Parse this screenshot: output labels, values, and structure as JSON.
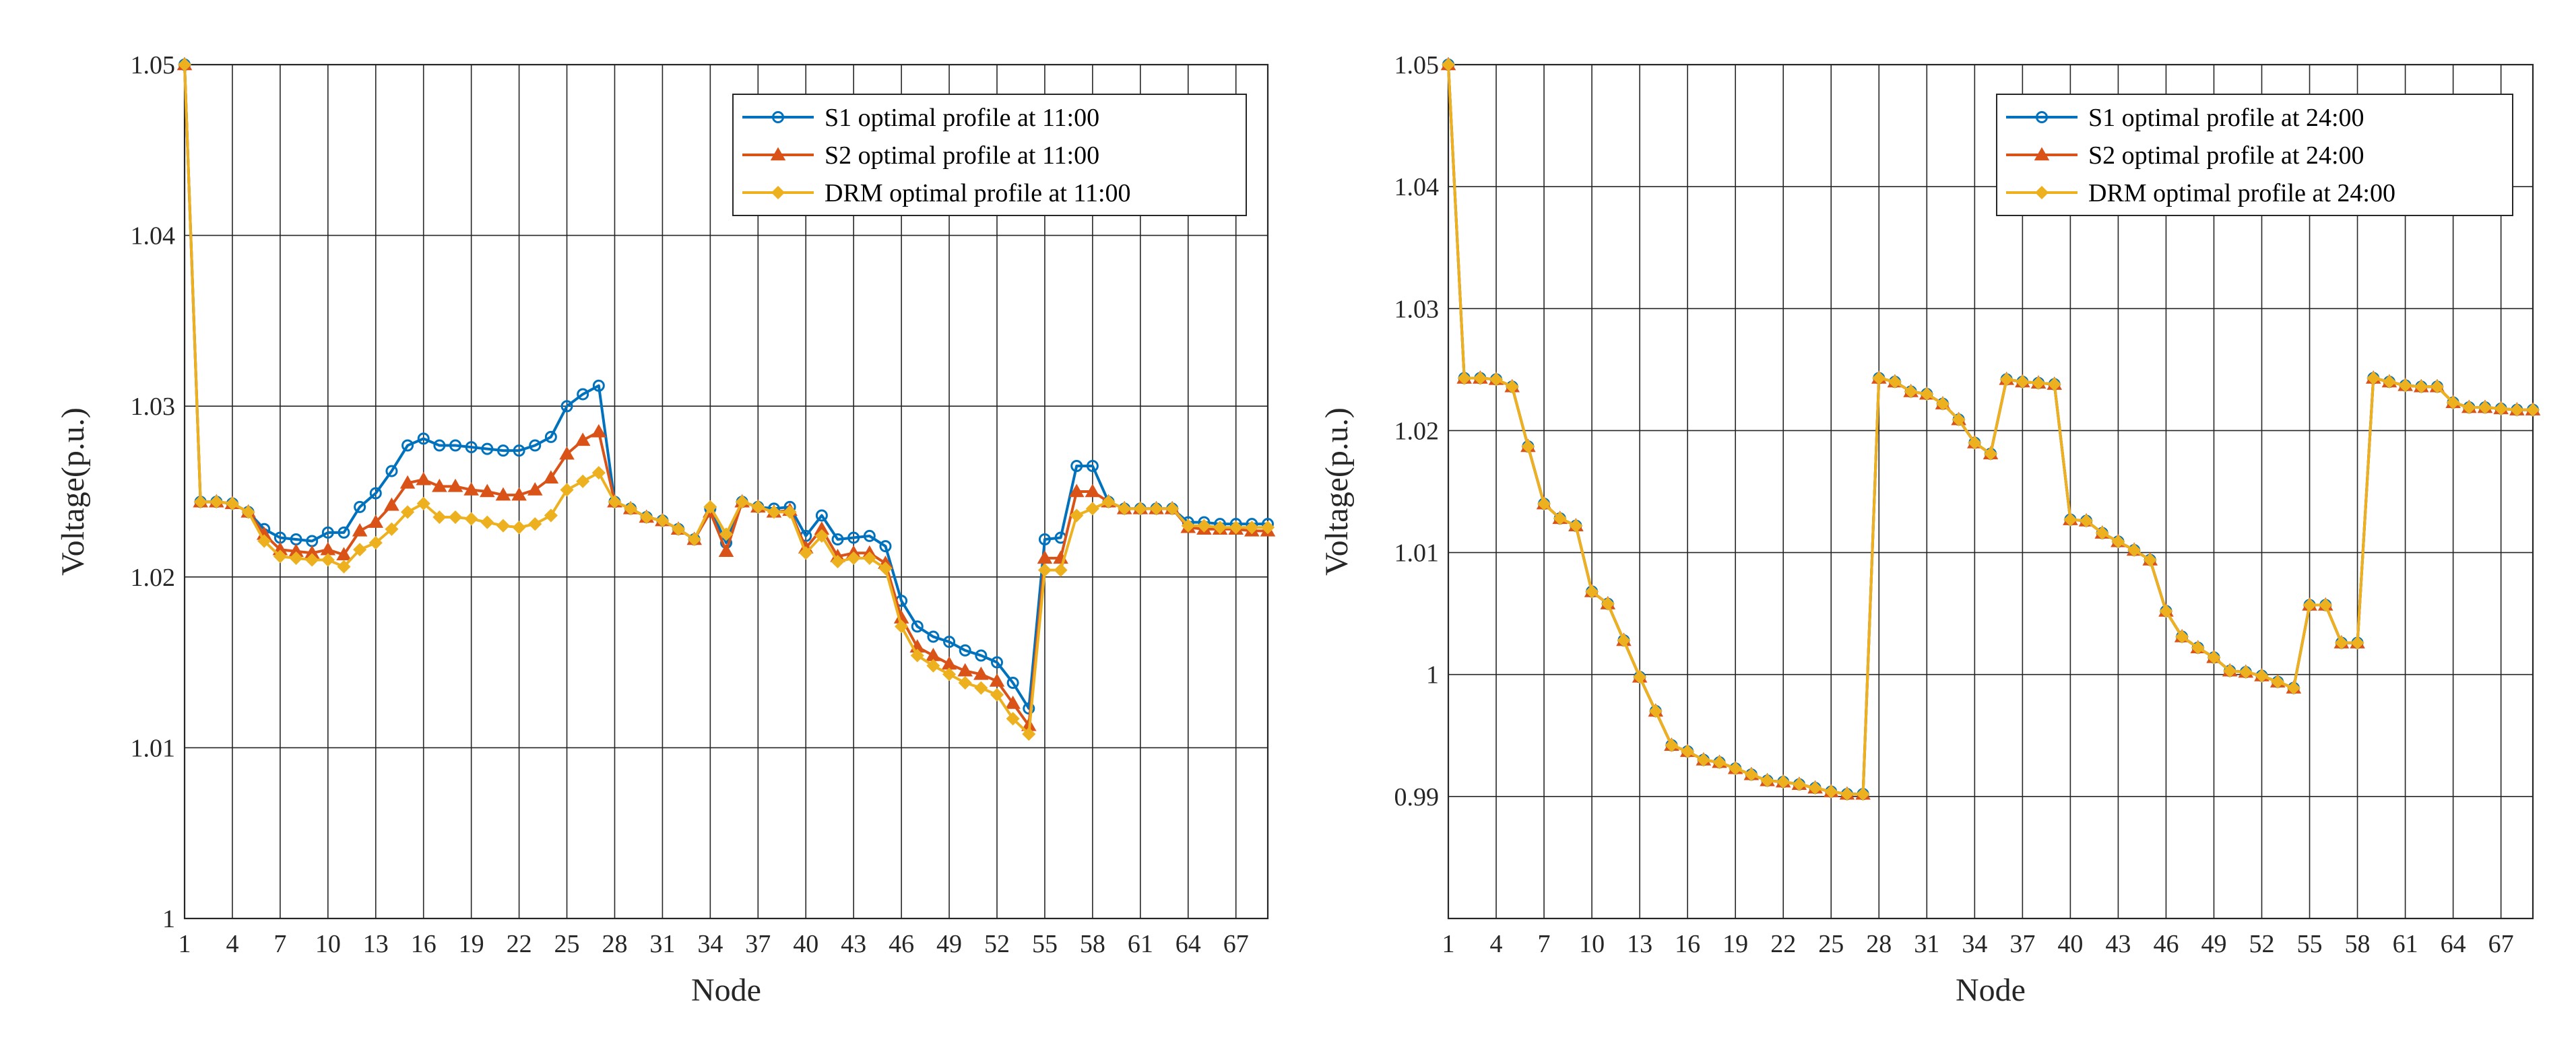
{
  "colors": {
    "S1": "#0072BD",
    "S2": "#D95319",
    "DRM": "#EDB120",
    "grid": "#262626",
    "axis": "#262626"
  },
  "chart_data": [
    {
      "type": "line",
      "title": "",
      "xlabel": "Node",
      "ylabel": "Voltage(p.u.)",
      "xlim": [
        1,
        69
      ],
      "ylim": [
        1.0,
        1.05
      ],
      "xticks": [
        1,
        4,
        7,
        10,
        13,
        16,
        19,
        22,
        25,
        28,
        31,
        34,
        37,
        40,
        43,
        46,
        49,
        52,
        55,
        58,
        61,
        64,
        67
      ],
      "yticks": [
        1.0,
        1.01,
        1.02,
        1.03,
        1.04,
        1.05
      ],
      "ytick_labels": [
        "1",
        "1.01",
        "1.02",
        "1.03",
        "1.04",
        "1.05"
      ],
      "grid": true,
      "legend_position": "top-right",
      "series": [
        {
          "name": "S1 optimal profile at 11:00",
          "marker": "circle",
          "values": [
            1.05,
            1.0244,
            1.0244,
            1.0243,
            1.0238,
            1.0228,
            1.0223,
            1.0222,
            1.0221,
            1.0226,
            1.0226,
            1.0241,
            1.0249,
            1.0262,
            1.0277,
            1.0281,
            1.0277,
            1.0277,
            1.0276,
            1.0275,
            1.0274,
            1.0274,
            1.0277,
            1.0282,
            1.03,
            1.0307,
            1.0312,
            1.0244,
            1.024,
            1.0235,
            1.0233,
            1.0228,
            1.0222,
            1.024,
            1.022,
            1.0244,
            1.0241,
            1.024,
            1.0241,
            1.0224,
            1.0236,
            1.0222,
            1.0223,
            1.0224,
            1.0218,
            1.0186,
            1.0171,
            1.0165,
            1.0162,
            1.0157,
            1.0154,
            1.015,
            1.0138,
            1.0123,
            1.0222,
            1.0223,
            1.0265,
            1.0265,
            1.0244,
            1.024,
            1.024,
            1.024,
            1.024,
            1.0232,
            1.0232,
            1.0231,
            1.0231,
            1.0231,
            1.0231
          ]
        },
        {
          "name": "S2 optimal profile at 11:00",
          "marker": "triangle",
          "values": [
            1.05,
            1.0244,
            1.0244,
            1.0243,
            1.0238,
            1.0225,
            1.0216,
            1.0215,
            1.0214,
            1.0216,
            1.0213,
            1.0227,
            1.0232,
            1.0242,
            1.0255,
            1.0257,
            1.0253,
            1.0253,
            1.0251,
            1.025,
            1.0248,
            1.0248,
            1.0251,
            1.0258,
            1.0272,
            1.028,
            1.0285,
            1.0244,
            1.024,
            1.0235,
            1.0233,
            1.0228,
            1.0222,
            1.0238,
            1.0215,
            1.0244,
            1.0241,
            1.0238,
            1.0239,
            1.0217,
            1.0228,
            1.0212,
            1.0214,
            1.0214,
            1.0208,
            1.0176,
            1.0159,
            1.0154,
            1.0149,
            1.0145,
            1.0143,
            1.0139,
            1.0126,
            1.0113,
            1.0211,
            1.0211,
            1.025,
            1.025,
            1.0244,
            1.024,
            1.024,
            1.024,
            1.024,
            1.0229,
            1.0228,
            1.0228,
            1.0228,
            1.0227,
            1.0227
          ]
        },
        {
          "name": "DRM optimal profile at 11:00",
          "marker": "diamond",
          "values": [
            1.05,
            1.0244,
            1.0244,
            1.0243,
            1.0238,
            1.0221,
            1.0212,
            1.0211,
            1.021,
            1.021,
            1.0206,
            1.0216,
            1.022,
            1.0228,
            1.0238,
            1.0243,
            1.0235,
            1.0235,
            1.0234,
            1.0232,
            1.023,
            1.0229,
            1.0231,
            1.0236,
            1.0251,
            1.0256,
            1.0261,
            1.0244,
            1.024,
            1.0235,
            1.0233,
            1.0228,
            1.0222,
            1.0241,
            1.0225,
            1.0244,
            1.0241,
            1.0238,
            1.0238,
            1.0214,
            1.0224,
            1.0209,
            1.0211,
            1.0211,
            1.0205,
            1.0171,
            1.0154,
            1.0148,
            1.0143,
            1.0138,
            1.0135,
            1.0131,
            1.0117,
            1.0108,
            1.0204,
            1.0204,
            1.0236,
            1.024,
            1.0244,
            1.024,
            1.024,
            1.024,
            1.024,
            1.023,
            1.023,
            1.0229,
            1.0229,
            1.0229,
            1.0229
          ]
        }
      ]
    },
    {
      "type": "line",
      "title": "",
      "xlabel": "Node",
      "ylabel": "Voltage(p.u.)",
      "xlim": [
        1,
        69
      ],
      "ylim": [
        0.98,
        1.05
      ],
      "xticks": [
        1,
        4,
        7,
        10,
        13,
        16,
        19,
        22,
        25,
        28,
        31,
        34,
        37,
        40,
        43,
        46,
        49,
        52,
        55,
        58,
        61,
        64,
        67
      ],
      "yticks": [
        0.99,
        1.0,
        1.01,
        1.02,
        1.03,
        1.04,
        1.05
      ],
      "ytick_labels": [
        "0.99",
        "1",
        "1.01",
        "1.02",
        "1.03",
        "1.04",
        "1.05"
      ],
      "grid": true,
      "legend_position": "top-right",
      "series": [
        {
          "name": "S1 optimal profile at 24:00",
          "marker": "circle",
          "values": [
            1.05,
            1.0243,
            1.0243,
            1.0242,
            1.0236,
            1.0187,
            1.014,
            1.0128,
            1.0122,
            1.0068,
            1.0058,
            1.0028,
            0.9998,
            0.997,
            0.9942,
            0.9937,
            0.993,
            0.9928,
            0.9923,
            0.9918,
            0.9913,
            0.9912,
            0.991,
            0.9907,
            0.9904,
            0.9902,
            0.9902,
            1.0243,
            1.024,
            1.0232,
            1.023,
            1.0222,
            1.0209,
            1.019,
            1.0181,
            1.0242,
            1.024,
            1.0239,
            1.0238,
            1.0127,
            1.0126,
            1.0116,
            1.0109,
            1.0102,
            1.0094,
            1.0052,
            1.0031,
            1.0022,
            1.0014,
            1.0003,
            1.0002,
            0.9999,
            0.9994,
            0.9989,
            1.0057,
            1.0057,
            1.0026,
            1.0026,
            1.0243,
            1.024,
            1.0237,
            1.0236,
            1.0236,
            1.0223,
            1.0219,
            1.0219,
            1.0218,
            1.0217,
            1.0217
          ]
        },
        {
          "name": "S2 optimal profile at 24:00",
          "marker": "triangle",
          "values": [
            1.05,
            1.0243,
            1.0243,
            1.0242,
            1.0236,
            1.0187,
            1.014,
            1.0128,
            1.0122,
            1.0068,
            1.0058,
            1.0028,
            0.9998,
            0.997,
            0.9942,
            0.9937,
            0.993,
            0.9928,
            0.9923,
            0.9918,
            0.9913,
            0.9912,
            0.991,
            0.9907,
            0.9904,
            0.9902,
            0.9902,
            1.0243,
            1.024,
            1.0232,
            1.023,
            1.0222,
            1.0209,
            1.019,
            1.0181,
            1.0242,
            1.024,
            1.0239,
            1.0238,
            1.0127,
            1.0126,
            1.0116,
            1.0109,
            1.0102,
            1.0094,
            1.0052,
            1.0031,
            1.0022,
            1.0014,
            1.0003,
            1.0002,
            0.9999,
            0.9994,
            0.9989,
            1.0057,
            1.0057,
            1.0026,
            1.0026,
            1.0243,
            1.024,
            1.0237,
            1.0236,
            1.0236,
            1.0223,
            1.0219,
            1.0219,
            1.0218,
            1.0217,
            1.0217
          ]
        },
        {
          "name": "DRM optimal profile at 24:00",
          "marker": "diamond",
          "values": [
            1.05,
            1.0243,
            1.0243,
            1.0242,
            1.0236,
            1.0187,
            1.014,
            1.0128,
            1.0122,
            1.0068,
            1.0058,
            1.0028,
            0.9998,
            0.997,
            0.9942,
            0.9937,
            0.993,
            0.9928,
            0.9923,
            0.9918,
            0.9913,
            0.9912,
            0.991,
            0.9907,
            0.9904,
            0.9902,
            0.9902,
            1.0243,
            1.024,
            1.0232,
            1.023,
            1.0222,
            1.0209,
            1.019,
            1.0181,
            1.0242,
            1.024,
            1.0239,
            1.0238,
            1.0127,
            1.0126,
            1.0116,
            1.0109,
            1.0102,
            1.0094,
            1.0052,
            1.0031,
            1.0022,
            1.0014,
            1.0003,
            1.0002,
            0.9999,
            0.9994,
            0.9989,
            1.0057,
            1.0057,
            1.0026,
            1.0026,
            1.0243,
            1.024,
            1.0237,
            1.0236,
            1.0236,
            1.0223,
            1.0219,
            1.0219,
            1.0218,
            1.0217,
            1.0217
          ]
        }
      ]
    }
  ]
}
